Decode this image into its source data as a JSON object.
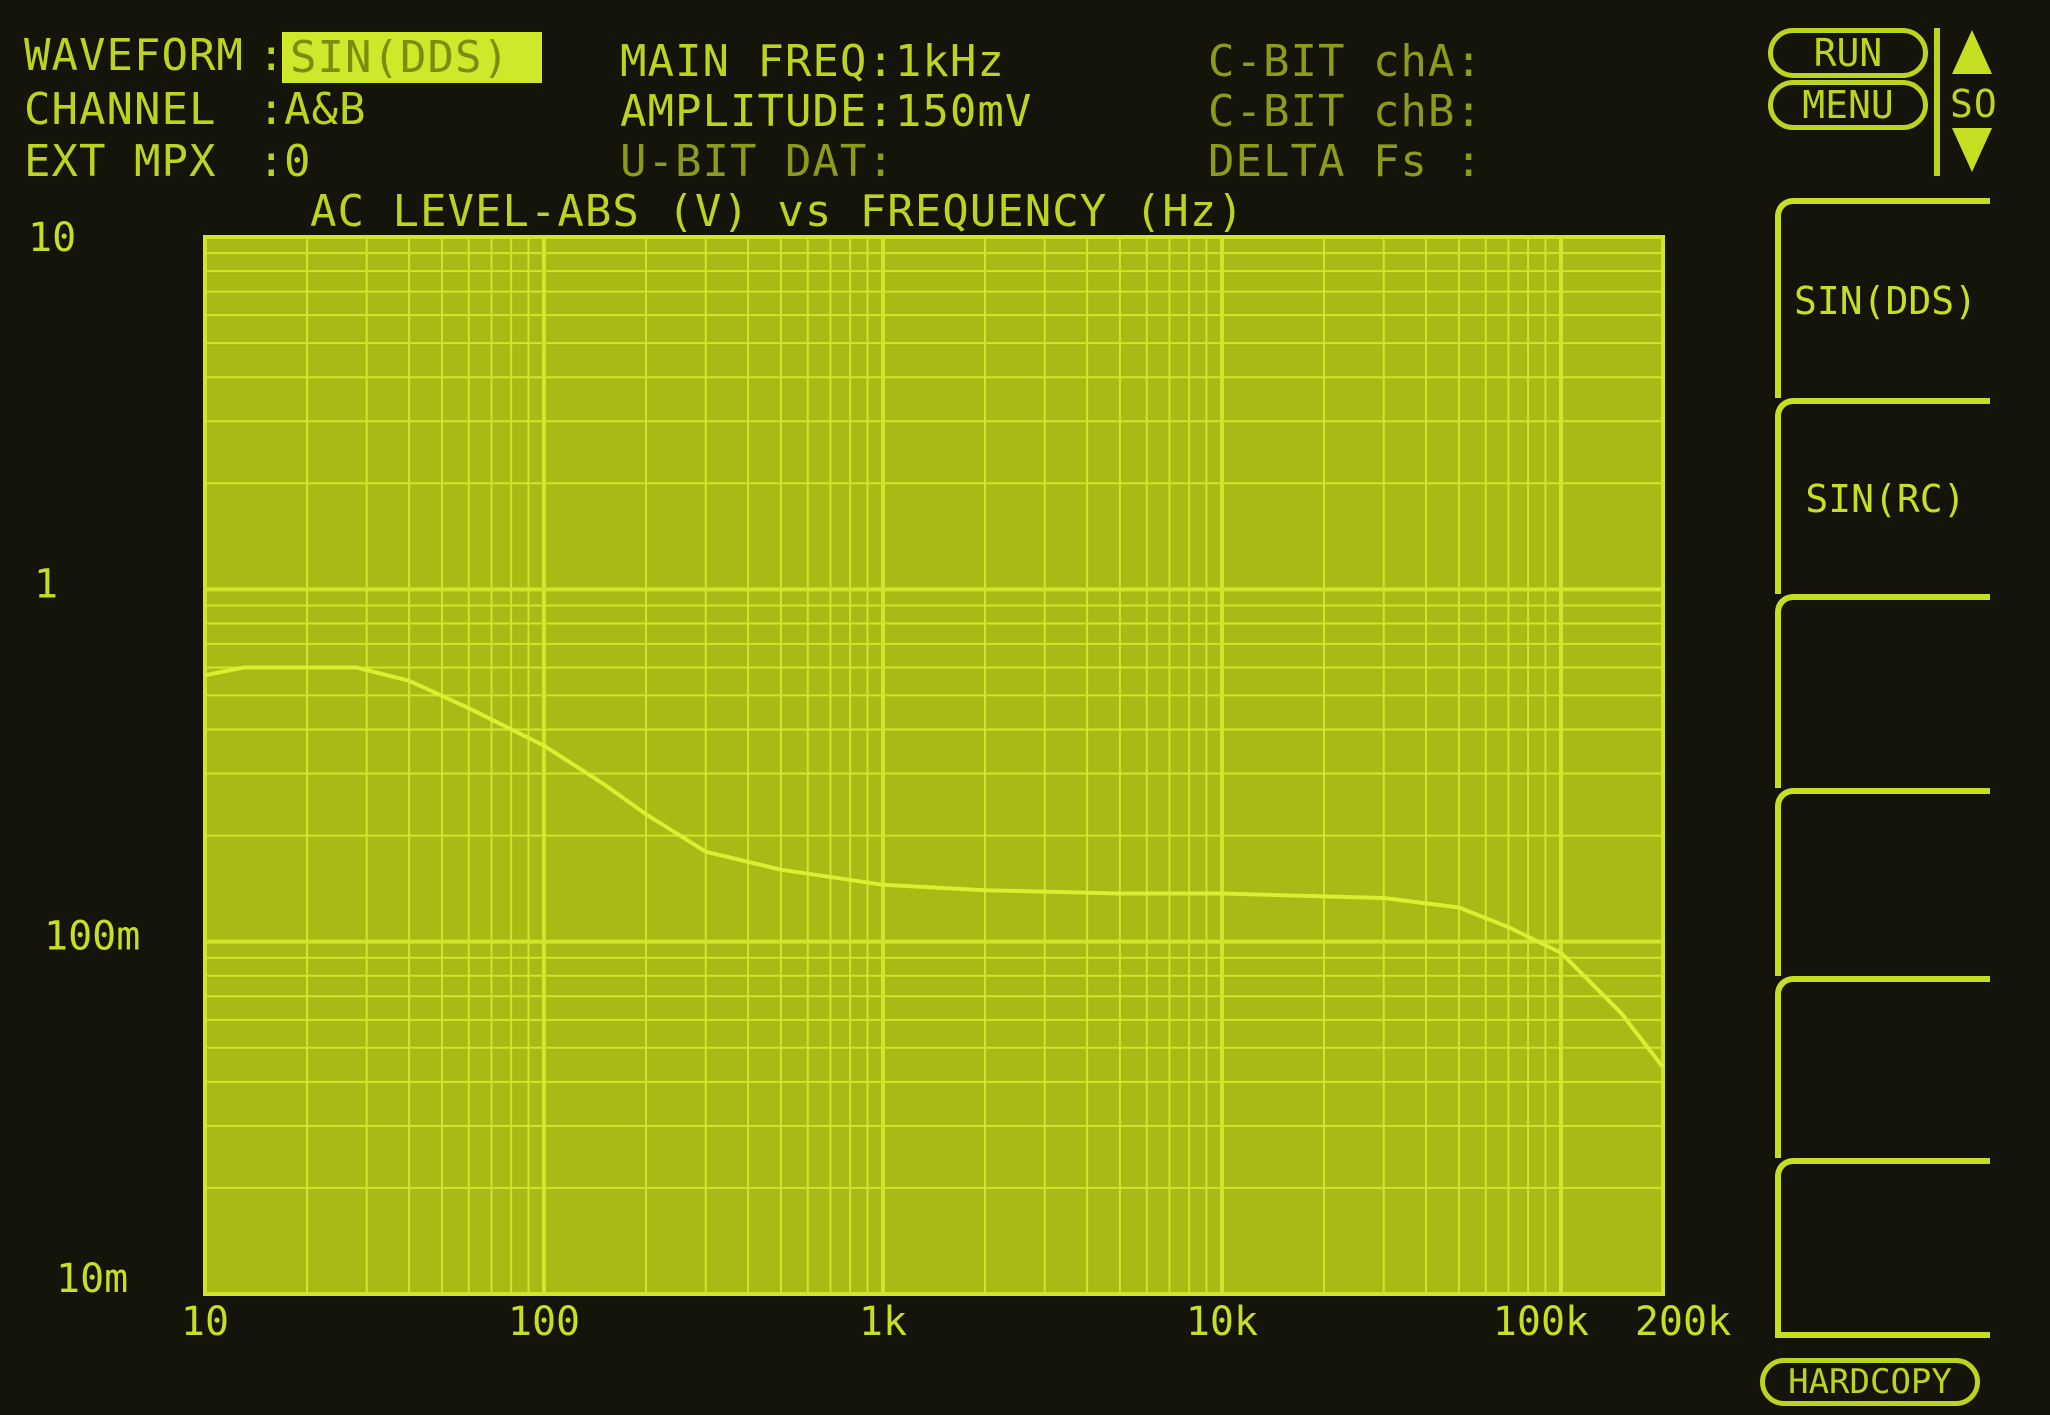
{
  "header": {
    "waveform_label": "WAVEFORM",
    "waveform_value": "SIN(DDS)",
    "channel_label": "CHANNEL",
    "channel_value": "A&B",
    "ext_mpx_label": "EXT MPX",
    "ext_mpx_value": "0",
    "main_freq": "MAIN FREQ:1kHz",
    "amplitude": "AMPLITUDE:150mV",
    "u_bit": "U-BIT DAT:",
    "cbit_a": "C-BIT chA:",
    "cbit_b": "C-BIT chB:",
    "delta_fs": "DELTA Fs :"
  },
  "controls": {
    "run": "RUN",
    "menu": "MENU",
    "so": "SO",
    "hardcopy": "HARDCOPY"
  },
  "softkeys": [
    "SIN(DDS)",
    "SIN(RC)",
    "",
    "",
    "",
    ""
  ],
  "colors": {
    "trace": "#d8f030",
    "plot_bg": "#a9b915",
    "grid": "#cfe62a",
    "screen_bg": "#15140a"
  },
  "chart_data": {
    "type": "line",
    "title": "AC LEVEL-ABS (V) vs FREQUENCY (Hz)",
    "x_scale": "log",
    "y_scale": "log",
    "xlim": [
      10,
      200000
    ],
    "ylim": [
      0.01,
      10
    ],
    "grid": true,
    "x_tick_labels": [
      {
        "v": 10,
        "label": "10"
      },
      {
        "v": 100,
        "label": "100"
      },
      {
        "v": 1000,
        "label": "1k"
      },
      {
        "v": 10000,
        "label": "10k"
      },
      {
        "v": 100000,
        "label": "100k"
      },
      {
        "v": 200000,
        "label": "200k"
      }
    ],
    "y_tick_labels": [
      {
        "v": 10,
        "label": "10"
      },
      {
        "v": 1,
        "label": "1"
      },
      {
        "v": 0.1,
        "label": "100m"
      },
      {
        "v": 0.01,
        "label": "10m"
      }
    ],
    "series": [
      {
        "x": [
          10,
          13,
          20,
          28,
          40,
          60,
          100,
          150,
          200,
          300,
          500,
          1000,
          2000,
          5000,
          10000,
          30000,
          50000,
          70000,
          100000,
          150000,
          200000
        ],
        "y": [
          0.57,
          0.6,
          0.6,
          0.6,
          0.55,
          0.46,
          0.36,
          0.28,
          0.23,
          0.18,
          0.16,
          0.145,
          0.14,
          0.137,
          0.137,
          0.133,
          0.125,
          0.11,
          0.093,
          0.063,
          0.044
        ]
      }
    ]
  }
}
